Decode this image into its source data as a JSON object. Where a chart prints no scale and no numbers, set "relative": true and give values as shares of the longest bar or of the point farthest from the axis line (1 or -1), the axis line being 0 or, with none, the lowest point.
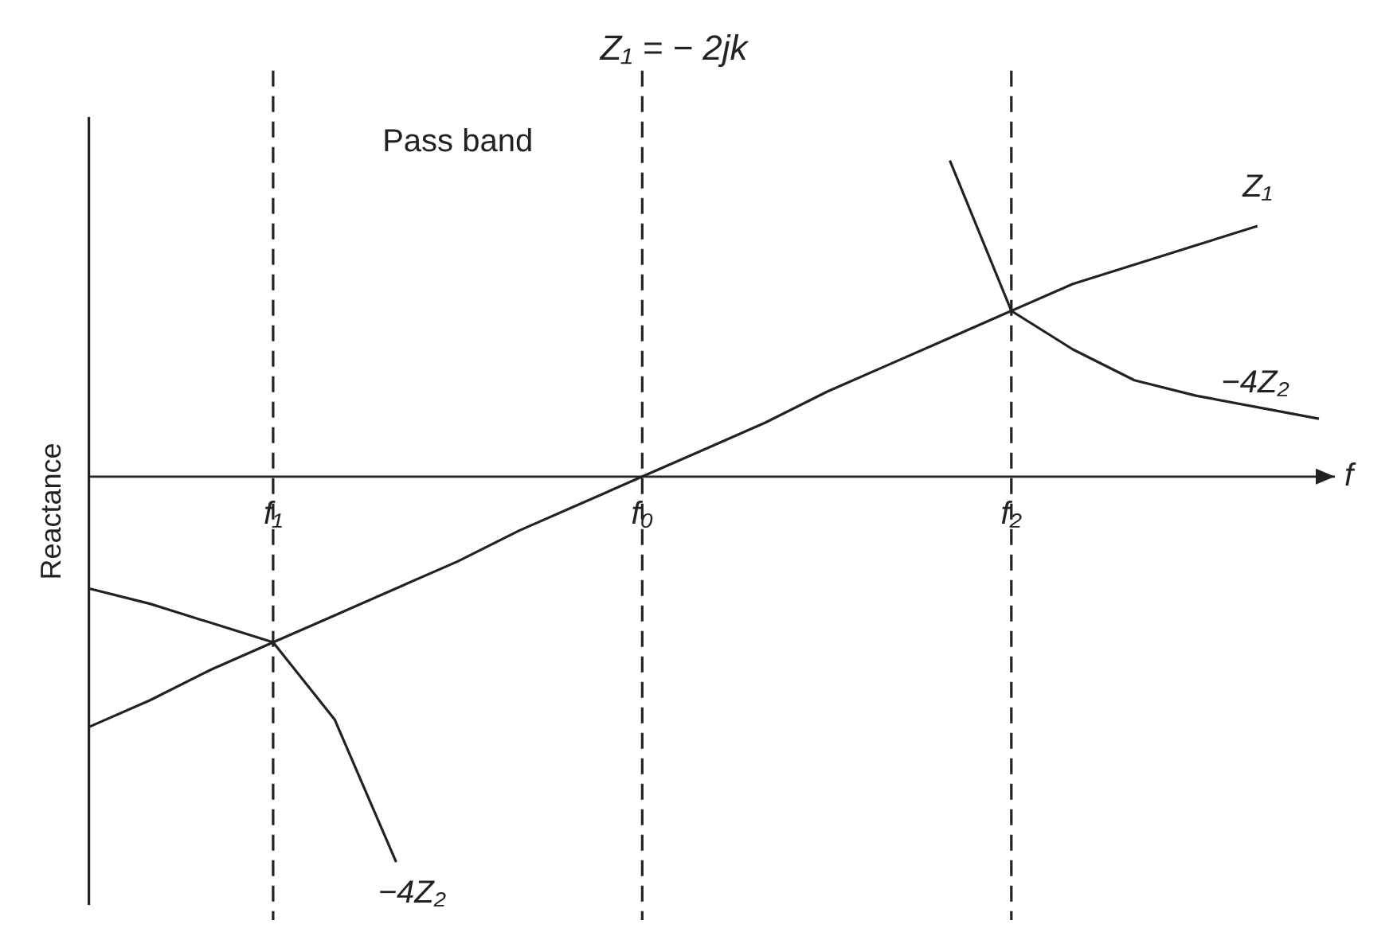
{
  "chart_data": {
    "type": "line",
    "relative": true,
    "title": "Z₁ = − 2jk",
    "xlabel": "f",
    "ylabel": "Reactance",
    "categories": [
      null,
      null,
      null,
      "f₁",
      null,
      null,
      null,
      null,
      null,
      "f₀",
      null,
      null,
      null,
      null,
      null,
      "f₂",
      null,
      null,
      null,
      null,
      null
    ],
    "series": [
      {
        "name": "Z₁",
        "color": "#222222",
        "values": [
          -0.65,
          -0.58,
          -0.5,
          -0.43,
          -0.36,
          -0.29,
          -0.22,
          -0.14,
          -0.07,
          0,
          0.07,
          0.14,
          0.22,
          0.29,
          0.36,
          0.43,
          0.5,
          0.55,
          0.6,
          0.65,
          null
        ]
      },
      {
        "name": "−4Z₂",
        "color": "#222222",
        "values": [
          -0.29,
          -0.33,
          -0.38,
          -0.43,
          -0.63,
          -1,
          null,
          null,
          null,
          null,
          null,
          null,
          null,
          null,
          0.82,
          0.43,
          0.33,
          0.25,
          0.21,
          0.18,
          0.15
        ]
      }
    ],
    "ref_lines": [
      {
        "axis": "x",
        "value": "f₁",
        "line_style": "dashed"
      },
      {
        "axis": "x",
        "value": "f₀",
        "line_style": "dashed"
      },
      {
        "axis": "x",
        "value": "f₂",
        "line_style": "dashed"
      }
    ],
    "annotations": [
      "Pass band"
    ],
    "grid": false,
    "legend": false,
    "marker": "none",
    "line_style": "solid"
  }
}
